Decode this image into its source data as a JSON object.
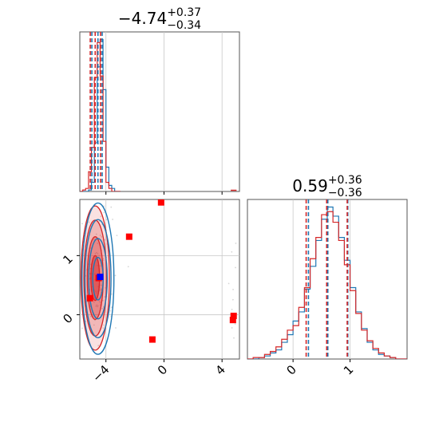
{
  "chart_data": {
    "type": "corner",
    "parameters": [
      {
        "title_value": "−4.74",
        "title_plus": "+0.37",
        "title_minus": "−0.34"
      },
      {
        "title_value": "0.59",
        "title_plus": "+0.36",
        "title_minus": "−0.36"
      }
    ],
    "axes": {
      "x0": {
        "range": [
          -5.8,
          5.2
        ],
        "ticks": [
          -4,
          0,
          4
        ],
        "tick_labels": [
          "−4",
          "0",
          "4"
        ]
      },
      "x1": {
        "range": [
          -0.8,
          2.0
        ],
        "ticks": [
          0,
          1
        ],
        "tick_labels": [
          "0",
          "1"
        ]
      },
      "y1": {
        "range": [
          -0.75,
          1.95
        ],
        "ticks": [
          0,
          1
        ],
        "tick_labels": [
          "0",
          "1"
        ]
      }
    },
    "grid": true,
    "colors": {
      "series_a": "#1f77b4",
      "series_b": "#d62728",
      "marker_a": "#0000ff",
      "marker_b": "#ff0000",
      "scatter": "#bbbbbb"
    },
    "series": [
      {
        "color": "#1f77b4",
        "quantiles_p0": [
          -4.97,
          -4.55,
          -4.26
        ],
        "quantiles_p1": [
          0.27,
          0.61,
          0.96
        ]
      },
      {
        "color": "#d62728",
        "quantiles_p0": [
          -5.08,
          -4.74,
          -4.37
        ],
        "quantiles_p1": [
          0.23,
          0.59,
          0.95
        ]
      }
    ],
    "hist_p0": {
      "bins": [
        -5.8,
        -5.6,
        -5.4,
        -5.2,
        -5.0,
        -4.8,
        -4.6,
        -4.4,
        -4.2,
        -4.0,
        -3.8,
        -3.6,
        -3.4,
        -3.2,
        -3.0
      ],
      "series_a": [
        0,
        0,
        0,
        0.01,
        0.06,
        0.32,
        0.82,
        1.0,
        0.67,
        0.16,
        0.04,
        0.02,
        0,
        0
      ],
      "series_b": [
        0,
        0.01,
        0.02,
        0.13,
        0.29,
        0.75,
        0.98,
        0.76,
        0.33,
        0.06,
        0.02,
        0,
        0,
        0
      ]
    },
    "hist_p1": {
      "bins": [
        -0.8,
        -0.7,
        -0.6,
        -0.5,
        -0.4,
        -0.3,
        -0.2,
        -0.1,
        0.0,
        0.1,
        0.2,
        0.3,
        0.4,
        0.5,
        0.6,
        0.7,
        0.8,
        0.9,
        1.0,
        1.1,
        1.2,
        1.3,
        1.4,
        1.5,
        1.6,
        1.7,
        1.8,
        1.9,
        2.0
      ],
      "series_a": [
        0,
        0,
        0.01,
        0.02,
        0.04,
        0.06,
        0.11,
        0.16,
        0.25,
        0.31,
        0.46,
        0.61,
        0.78,
        0.92,
        1.0,
        0.94,
        0.8,
        0.65,
        0.47,
        0.31,
        0.2,
        0.11,
        0.06,
        0.03,
        0.02,
        0.01,
        0,
        0
      ],
      "series_b": [
        0,
        0.01,
        0.01,
        0.03,
        0.05,
        0.08,
        0.13,
        0.19,
        0.22,
        0.34,
        0.47,
        0.66,
        0.8,
        0.95,
        0.97,
        0.9,
        0.78,
        0.62,
        0.45,
        0.3,
        0.19,
        0.12,
        0.07,
        0.04,
        0.02,
        0.01,
        0,
        0
      ]
    },
    "contours_a": [
      {
        "center": [
          -4.55,
          0.61
        ],
        "radius": [
          0.36,
          0.36
        ]
      },
      {
        "center": [
          -4.55,
          0.61
        ],
        "radius": [
          0.64,
          0.68
        ]
      },
      {
        "center": [
          -4.55,
          0.61
        ],
        "radius": [
          0.9,
          1.0
        ]
      },
      {
        "center": [
          -4.55,
          0.61
        ],
        "radius": [
          1.1,
          1.28
        ]
      }
    ],
    "contours_b": [
      {
        "center": [
          -4.74,
          0.62
        ],
        "radius": [
          0.3,
          0.38
        ]
      },
      {
        "center": [
          -4.74,
          0.62
        ],
        "radius": [
          0.55,
          0.7
        ]
      },
      {
        "center": [
          -4.74,
          0.62
        ],
        "radius": [
          0.78,
          0.98
        ]
      },
      {
        "center": [
          -4.74,
          0.62
        ],
        "radius": [
          0.98,
          1.22
        ]
      }
    ],
    "markers_b": [
      [
        -0.2,
        1.9
      ],
      [
        -2.4,
        1.32
      ],
      [
        -4.5,
        0.62
      ],
      [
        -5.1,
        0.28
      ],
      [
        -0.8,
        -0.42
      ],
      [
        4.8,
        -0.02
      ],
      [
        4.75,
        -0.09
      ]
    ],
    "markers_a": [
      [
        -4.4,
        0.64
      ]
    ],
    "outlier_tail_p0": [
      4.6,
      5.0
    ]
  }
}
